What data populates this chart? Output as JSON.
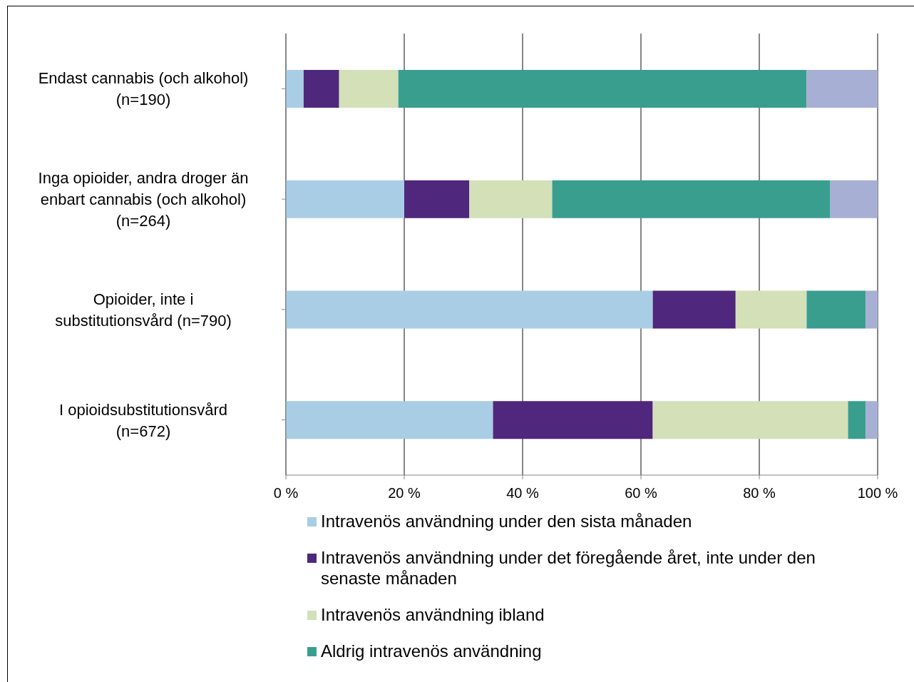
{
  "chart_data": {
    "type": "bar",
    "orientation": "horizontal",
    "stacked": true,
    "categories": [
      "Endast cannabis (och alkohol) (n=190)",
      "Inga opioider, andra droger än enbart cannabis (och alkohol) (n=264)",
      "Opioider, inte i substitutionsvård (n=790)",
      "I opioidsubstitutionsvård (n=672)"
    ],
    "series": [
      {
        "name": "Intravenös användning under den sista månaden",
        "color": "#a9cde5",
        "values": [
          3,
          20,
          62,
          35
        ]
      },
      {
        "name": "Intravenös användning under det föregående året, inte under den senaste månaden",
        "color": "#4f277c",
        "values": [
          6,
          11,
          14,
          27
        ]
      },
      {
        "name": "Intravenös användning ibland",
        "color": "#d3e0b8",
        "values": [
          10,
          14,
          12,
          33
        ]
      },
      {
        "name": "Aldrig intravenös användning",
        "color": "#3a9e8f",
        "values": [
          69,
          47,
          10,
          3
        ]
      },
      {
        "color": "#a7afd4",
        "values": [
          12,
          8,
          2,
          2
        ]
      }
    ],
    "xlim": [
      0,
      100
    ],
    "xticks": [
      {
        "value": 0,
        "label": "0 %"
      },
      {
        "value": 20,
        "label": "20 %"
      },
      {
        "value": 40,
        "label": "40 %"
      },
      {
        "value": 60,
        "label": "60 %"
      },
      {
        "value": 80,
        "label": "80 %"
      },
      {
        "value": 100,
        "label": "100 %"
      }
    ],
    "grid": "x",
    "legend": "bottom"
  }
}
